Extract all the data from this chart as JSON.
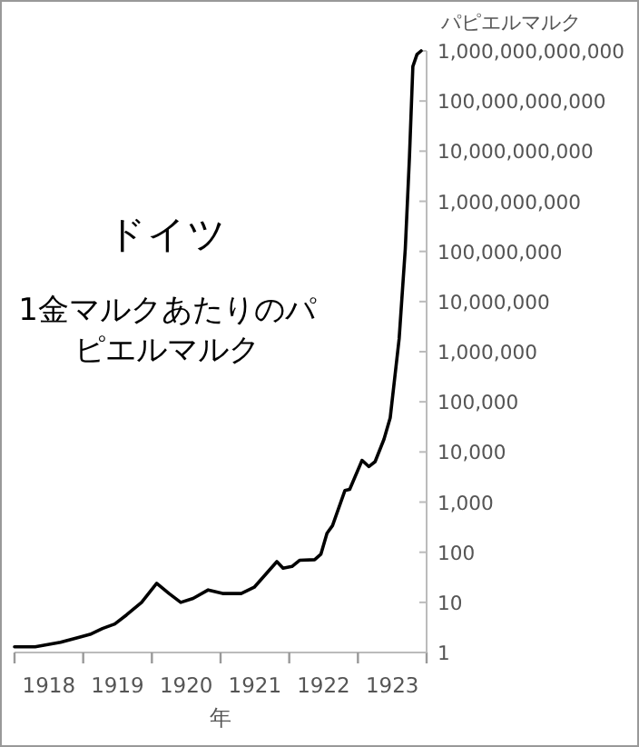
{
  "chart_data": {
    "type": "line",
    "title": "ドイツ",
    "subtitle": "1金マルクあたりのパピエルマルク",
    "xlabel": "年",
    "ylabel": "パピエルマルク",
    "log": "y",
    "grid": false,
    "marker": "none",
    "line_style": "solid",
    "xlim": [
      1918,
      1924
    ],
    "xticks": [
      {
        "value": 1918,
        "label": null
      },
      {
        "value": 1918.5,
        "label": "1918"
      },
      {
        "value": 1919,
        "label": null
      },
      {
        "value": 1919.5,
        "label": "1919"
      },
      {
        "value": 1920,
        "label": null
      },
      {
        "value": 1920.5,
        "label": "1920"
      },
      {
        "value": 1921,
        "label": null
      },
      {
        "value": 1921.5,
        "label": "1921"
      },
      {
        "value": 1922,
        "label": null
      },
      {
        "value": 1922.5,
        "label": "1922"
      },
      {
        "value": 1923,
        "label": null
      },
      {
        "value": 1923.5,
        "label": "1923"
      },
      {
        "value": 1924,
        "label": null
      }
    ],
    "ylim": [
      1,
      1000000000000
    ],
    "yticks": [
      1,
      10,
      100,
      {
        "value": 1000,
        "label": "1,000"
      },
      {
        "value": 10000,
        "label": "10,000"
      },
      {
        "value": 100000,
        "label": "100,000"
      },
      {
        "value": 1000000,
        "label": "1,000,000"
      },
      {
        "value": 10000000,
        "label": "10,000,000"
      },
      {
        "value": 100000000,
        "label": "100,000,000"
      },
      {
        "value": 1000000000,
        "label": "1,000,000,000"
      },
      {
        "value": 10000000000,
        "label": "10,000,000,000"
      },
      {
        "value": 100000000000,
        "label": "100,000,000,000"
      },
      {
        "value": 1000000000000,
        "label": "1,000,000,000,000"
      }
    ],
    "series": [
      {
        "color": "#000000",
        "x": [
          1918.0,
          1918.3,
          1918.67,
          1918.93,
          1919.1,
          1919.28,
          1919.46,
          1919.63,
          1919.85,
          1920.07,
          1920.25,
          1920.42,
          1920.6,
          1920.82,
          1921.03,
          1921.3,
          1921.49,
          1921.82,
          1921.91,
          1922.04,
          1922.15,
          1922.37,
          1922.46,
          1922.55,
          1922.63,
          1922.81,
          1922.88,
          1923.06,
          1923.16,
          1923.25,
          1923.38,
          1923.47,
          1923.6,
          1923.69,
          1923.75,
          1923.8,
          1923.86,
          1923.92
        ],
        "values": [
          1.3,
          1.3,
          1.6,
          2,
          2.3,
          3,
          3.7,
          5.6,
          10,
          24,
          15,
          10,
          12,
          17.7,
          15,
          15,
          20,
          65,
          48,
          52,
          69,
          71,
          91,
          240,
          340,
          1700,
          1800,
          6800,
          5100,
          6400,
          18000,
          48000,
          1800000,
          115000000,
          7400000000,
          490000000000,
          850000000000,
          1000000000000
        ]
      }
    ]
  }
}
